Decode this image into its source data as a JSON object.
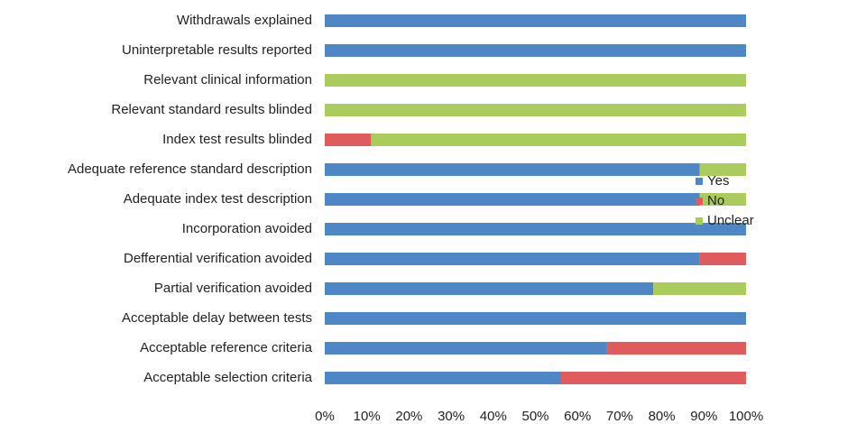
{
  "chart_data": {
    "type": "stacked-barh",
    "categories": [
      "Withdrawals explained",
      "Uninterpretable results reported",
      "Relevant clinical information",
      "Relevant standard results blinded",
      "Index test results blinded",
      "Adequate reference standard description",
      "Adequate index test description",
      "Incorporation avoided",
      "Defferential verification avoided",
      "Partial verification avoided",
      "Acceptable delay between tests",
      "Acceptable reference criteria",
      "Acceptable selection criteria"
    ],
    "series": [
      {
        "name": "Yes",
        "color": "#4f86c6",
        "values": [
          100,
          100,
          0,
          0,
          0,
          89,
          89,
          100,
          89,
          78,
          100,
          67,
          56
        ]
      },
      {
        "name": "No",
        "color": "#e05b5b",
        "values": [
          0,
          0,
          0,
          0,
          11,
          0,
          0,
          0,
          11,
          0,
          0,
          33,
          44
        ]
      },
      {
        "name": "Unclear",
        "color": "#a9cc5c",
        "values": [
          0,
          0,
          100,
          100,
          89,
          11,
          11,
          0,
          0,
          22,
          0,
          0,
          0
        ]
      }
    ],
    "xlim": [
      0,
      100
    ],
    "xticks": [
      {
        "value": 0,
        "label": "0%"
      },
      {
        "value": 10,
        "label": "10%"
      },
      {
        "value": 20,
        "label": "20%"
      },
      {
        "value": 30,
        "label": "30%"
      },
      {
        "value": 40,
        "label": "40%"
      },
      {
        "value": 50,
        "label": "50%"
      },
      {
        "value": 60,
        "label": "60%"
      },
      {
        "value": 70,
        "label": "70%"
      },
      {
        "value": 80,
        "label": "80%"
      },
      {
        "value": 90,
        "label": "90%"
      },
      {
        "value": 100,
        "label": "100%"
      }
    ],
    "grid": false,
    "legend": "right"
  }
}
